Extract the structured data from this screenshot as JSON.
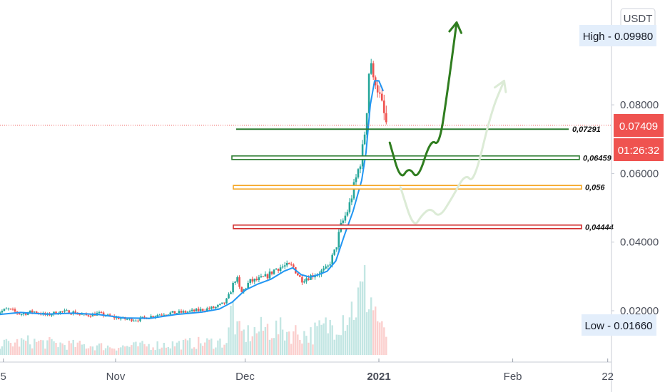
{
  "chart_data": {
    "type": "candlestick",
    "currency": "USDT",
    "y_ticks": [
      "0.08000",
      "0.06000",
      "0.04000",
      "0.02000"
    ],
    "y_tick_values": [
      0.08,
      0.06,
      0.04,
      0.02
    ],
    "ylim": [
      0.0,
      0.1076
    ],
    "x_ticks": [
      "5",
      "Nov",
      "Dec",
      "2021",
      "Feb",
      "22"
    ],
    "x_tick_days": [
      -26,
      0,
      30,
      61,
      92,
      114
    ],
    "xlim": [
      -28,
      118
    ],
    "high_label": "High - 0.09980",
    "high_value": 0.0998,
    "low_label": "Low - 0.01660",
    "low_value": 0.0166,
    "last_price_label": "0.07409",
    "last_price": 0.07409,
    "countdown": "01:26:32",
    "colors": {
      "up": "#26a69a",
      "down": "#ef5350",
      "ma": "#2196f3",
      "price_line": "#ef5350"
    },
    "price_path": [
      [
        -28,
        0.0192
      ],
      [
        -25,
        0.0205
      ],
      [
        -22,
        0.019
      ],
      [
        -19,
        0.0198
      ],
      [
        -16,
        0.0187
      ],
      [
        -13,
        0.0197
      ],
      [
        -10,
        0.0196
      ],
      [
        -7,
        0.0186
      ],
      [
        -4,
        0.0192
      ],
      [
        -1,
        0.0182
      ],
      [
        2,
        0.0176
      ],
      [
        5,
        0.0174
      ],
      [
        8,
        0.0183
      ],
      [
        11,
        0.0192
      ],
      [
        14,
        0.0194
      ],
      [
        17,
        0.0197
      ],
      [
        20,
        0.0203
      ],
      [
        23,
        0.0209
      ],
      [
        25,
        0.022
      ],
      [
        26,
        0.0235
      ],
      [
        27,
        0.027
      ],
      [
        28,
        0.03
      ],
      [
        29,
        0.025
      ],
      [
        30,
        0.0265
      ],
      [
        31,
        0.0285
      ],
      [
        33,
        0.029
      ],
      [
        35,
        0.03
      ],
      [
        37,
        0.0322
      ],
      [
        39,
        0.033
      ],
      [
        41,
        0.033
      ],
      [
        43,
        0.029
      ],
      [
        45,
        0.03
      ],
      [
        47,
        0.031
      ],
      [
        49,
        0.0322
      ],
      [
        50,
        0.035
      ],
      [
        51,
        0.038
      ],
      [
        52,
        0.044
      ],
      [
        53,
        0.047
      ],
      [
        54,
        0.05
      ],
      [
        55,
        0.055
      ],
      [
        56,
        0.06
      ],
      [
        57,
        0.065
      ],
      [
        58,
        0.075
      ],
      [
        59,
        0.096
      ],
      [
        59.6,
        0.086
      ],
      [
        60.3,
        0.088
      ],
      [
        61,
        0.083
      ],
      [
        62,
        0.078
      ],
      [
        62.8,
        0.0741
      ]
    ],
    "ma_path": [
      [
        -28,
        0.0188
      ],
      [
        -22,
        0.0195
      ],
      [
        -16,
        0.019
      ],
      [
        -10,
        0.0193
      ],
      [
        -4,
        0.0189
      ],
      [
        2,
        0.0179
      ],
      [
        8,
        0.0178
      ],
      [
        14,
        0.0189
      ],
      [
        20,
        0.0196
      ],
      [
        24,
        0.0205
      ],
      [
        27,
        0.0225
      ],
      [
        30,
        0.026
      ],
      [
        33,
        0.0278
      ],
      [
        36,
        0.0292
      ],
      [
        39,
        0.0315
      ],
      [
        41,
        0.0325
      ],
      [
        43,
        0.0305
      ],
      [
        45,
        0.0298
      ],
      [
        47,
        0.0305
      ],
      [
        49,
        0.0315
      ],
      [
        51,
        0.0345
      ],
      [
        53,
        0.042
      ],
      [
        55,
        0.049
      ],
      [
        57,
        0.058
      ],
      [
        58,
        0.066
      ],
      [
        59,
        0.08
      ],
      [
        60,
        0.087
      ],
      [
        61,
        0.087
      ],
      [
        62,
        0.084
      ]
    ],
    "volume_path": [
      [
        -28,
        0.15
      ],
      [
        -20,
        0.2
      ],
      [
        -10,
        0.15
      ],
      [
        0,
        0.12
      ],
      [
        10,
        0.15
      ],
      [
        20,
        0.18
      ],
      [
        26,
        0.2
      ],
      [
        27,
        0.8
      ],
      [
        28,
        0.35
      ],
      [
        30,
        0.3
      ],
      [
        35,
        0.4
      ],
      [
        40,
        0.35
      ],
      [
        45,
        0.3
      ],
      [
        50,
        0.45
      ],
      [
        53,
        0.6
      ],
      [
        55,
        0.7
      ],
      [
        57,
        0.9
      ],
      [
        58,
        1.0
      ],
      [
        59,
        0.85
      ],
      [
        60,
        0.7
      ],
      [
        61,
        0.5
      ],
      [
        62,
        0.3
      ]
    ],
    "levels": [
      {
        "label": "0,07291",
        "value": 0.07291,
        "color": "#2e7d32"
      },
      {
        "label": "0,06459",
        "value": 0.06459,
        "color": "#2e7d32"
      },
      {
        "label": "0,056",
        "value": 0.056,
        "color": "#f5a623"
      },
      {
        "label": "0,04444",
        "value": 0.04444,
        "color": "#d32f2f"
      }
    ],
    "scenario_main": [
      [
        63.5,
        0.069
      ],
      [
        66,
        0.058
      ],
      [
        68,
        0.062
      ],
      [
        70,
        0.058
      ],
      [
        73,
        0.07
      ],
      [
        75,
        0.068
      ],
      [
        77,
        0.085
      ],
      [
        79,
        0.104
      ]
    ],
    "scenario_alt": [
      [
        66,
        0.056
      ],
      [
        69,
        0.044
      ],
      [
        71,
        0.048
      ],
      [
        73,
        0.05
      ],
      [
        75,
        0.047
      ],
      [
        78,
        0.053
      ],
      [
        81,
        0.06
      ],
      [
        83,
        0.057
      ],
      [
        87,
        0.078
      ],
      [
        90,
        0.087
      ]
    ]
  }
}
